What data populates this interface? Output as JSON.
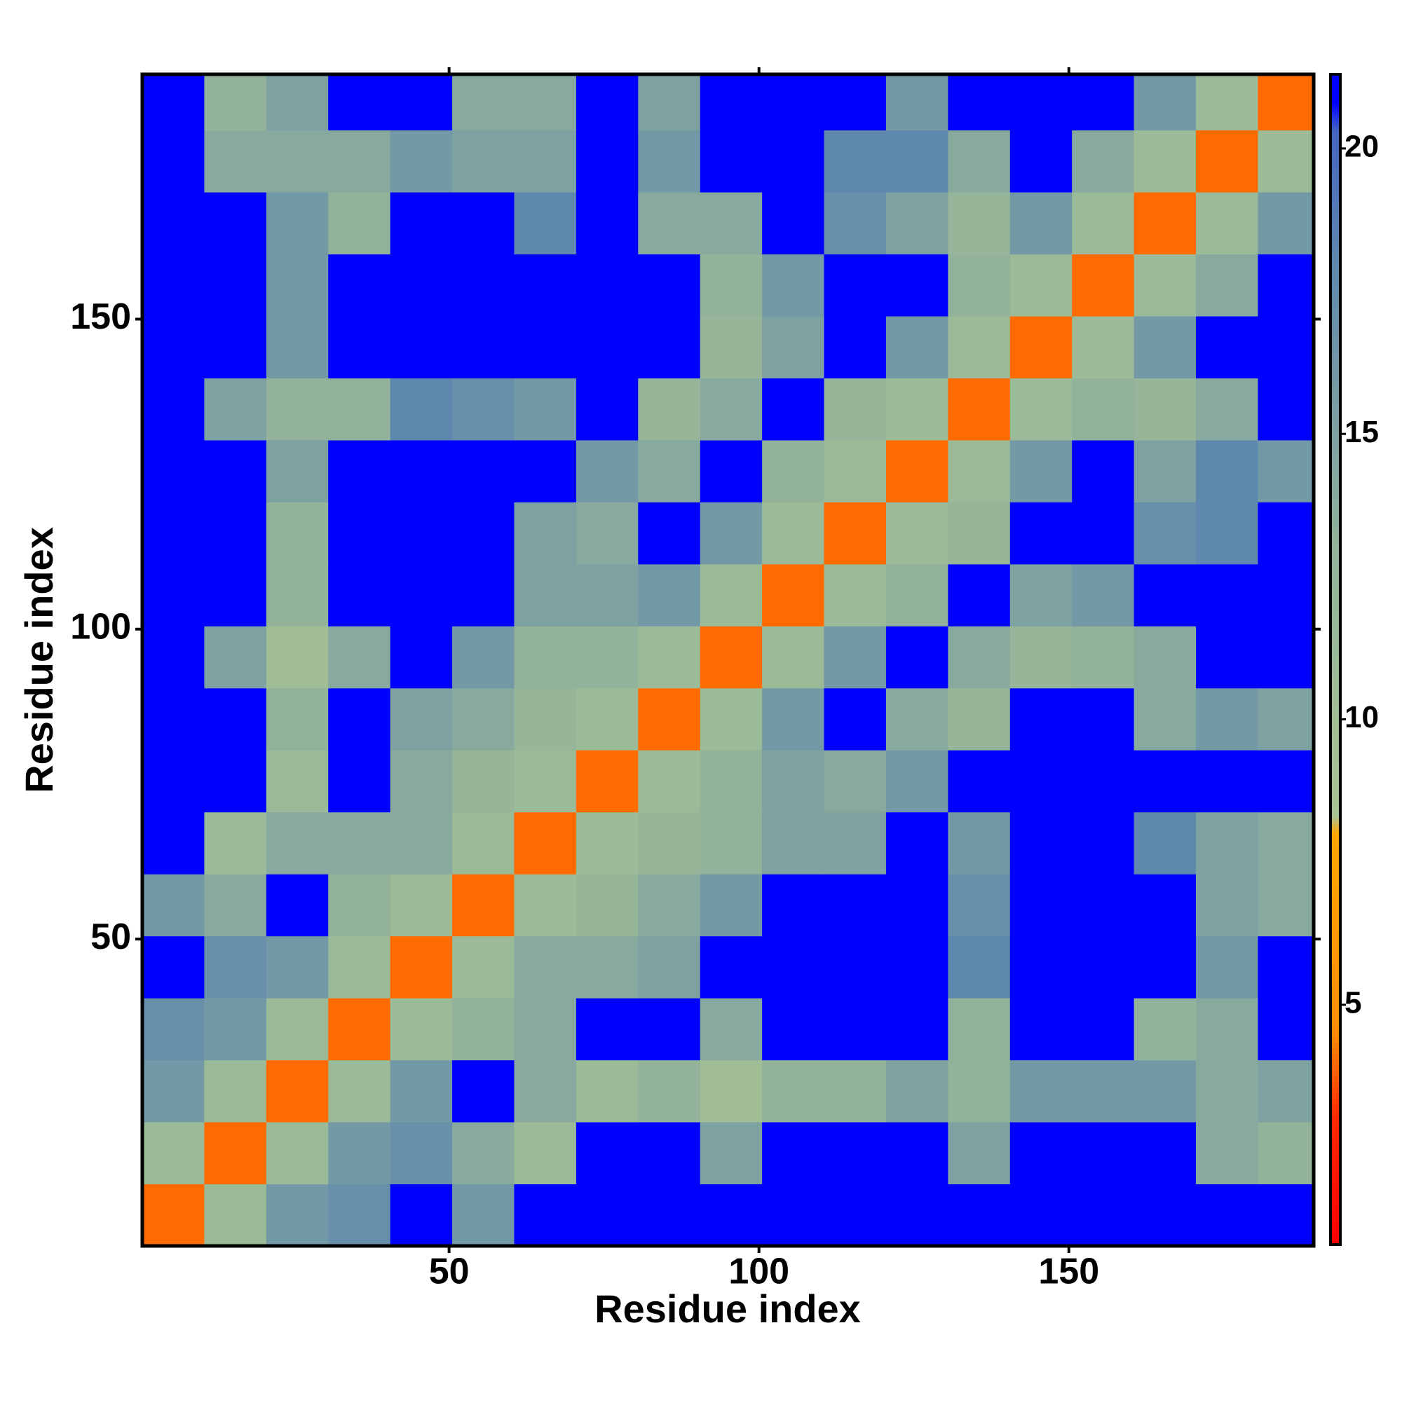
{
  "chart_data": {
    "type": "heatmap",
    "xlabel": "Residue index",
    "ylabel": "Residue index",
    "bins": [
      0.5,
      10.5,
      20.5,
      30.5,
      40.5,
      50.5,
      60.5,
      70.5,
      80.5,
      90.5,
      100.5,
      110.5,
      120.5,
      130.5,
      140.5,
      150.5,
      160.5,
      170.5,
      180.5,
      189.5
    ],
    "xlim": [
      0.5,
      189.5
    ],
    "ylim": [
      0.5,
      189.5
    ],
    "xticks": [
      50,
      100,
      150
    ],
    "yticks": [
      50,
      100,
      150
    ],
    "zlim": [
      0.8,
      21.3
    ],
    "zticks": [
      5,
      10,
      15,
      20
    ],
    "colorscale": [
      [
        0.8,
        "#ff0000"
      ],
      [
        3,
        "#ff2a00"
      ],
      [
        4.5,
        "#ff8c00"
      ],
      [
        8,
        "#ffa500"
      ],
      [
        8.3,
        "#a8c494"
      ],
      [
        13,
        "#92b29a"
      ],
      [
        18,
        "#5f88ae"
      ],
      [
        20.3,
        "#4466c4"
      ],
      [
        20.8,
        "#0000ff"
      ],
      [
        21.3,
        "#0000ff"
      ]
    ],
    "z": [
      [
        4,
        11,
        16,
        17,
        21,
        16,
        21,
        21,
        21,
        21,
        21,
        21,
        21,
        21,
        21,
        21,
        21,
        21,
        21
      ],
      [
        11,
        4,
        11,
        16,
        17,
        14,
        11,
        21,
        21,
        15,
        21,
        21,
        21,
        15,
        21,
        21,
        21,
        14,
        13
      ],
      [
        16,
        11,
        4,
        11,
        16,
        21,
        14,
        11,
        13,
        10,
        13,
        13,
        15,
        13,
        16,
        16,
        16,
        14,
        15
      ],
      [
        17,
        16,
        11,
        4,
        11,
        13,
        14,
        21,
        21,
        14,
        21,
        21,
        21,
        13,
        21,
        21,
        13,
        14,
        21
      ],
      [
        21,
        17,
        16,
        11,
        4,
        11,
        14,
        14,
        15,
        21,
        21,
        21,
        21,
        18,
        21,
        21,
        21,
        16,
        21
      ],
      [
        16,
        14,
        21,
        13,
        11,
        4,
        11,
        12,
        14,
        16,
        21,
        21,
        21,
        17,
        21,
        21,
        21,
        15,
        14
      ],
      [
        21,
        11,
        14,
        14,
        14,
        11,
        4,
        11,
        12,
        13,
        15,
        15,
        21,
        16,
        21,
        21,
        18,
        15,
        14
      ],
      [
        21,
        21,
        11,
        21,
        14,
        12,
        11,
        4,
        11,
        13,
        15,
        14,
        16,
        21,
        21,
        21,
        21,
        21,
        21
      ],
      [
        21,
        21,
        13,
        21,
        15,
        14,
        12,
        11,
        4,
        11,
        16,
        21,
        14,
        12,
        21,
        21,
        14,
        16,
        15
      ],
      [
        21,
        15,
        10,
        14,
        21,
        16,
        13,
        13,
        11,
        4,
        11,
        16,
        21,
        14,
        12,
        13,
        14,
        21,
        21
      ],
      [
        21,
        21,
        13,
        21,
        21,
        21,
        15,
        15,
        16,
        11,
        4,
        11,
        13,
        21,
        15,
        16,
        21,
        21,
        21
      ],
      [
        21,
        21,
        13,
        21,
        21,
        21,
        15,
        14,
        21,
        16,
        11,
        4,
        11,
        12,
        21,
        21,
        17,
        18,
        21
      ],
      [
        21,
        21,
        15,
        21,
        21,
        21,
        21,
        16,
        14,
        21,
        13,
        11,
        4,
        11,
        16,
        21,
        15,
        18,
        16
      ],
      [
        21,
        15,
        13,
        13,
        18,
        17,
        16,
        21,
        12,
        14,
        21,
        12,
        11,
        4,
        11,
        13,
        12,
        14,
        21
      ],
      [
        21,
        21,
        16,
        21,
        21,
        21,
        21,
        21,
        21,
        12,
        15,
        21,
        16,
        11,
        4,
        11,
        16,
        21,
        21
      ],
      [
        21,
        21,
        16,
        21,
        21,
        21,
        21,
        21,
        21,
        13,
        16,
        21,
        21,
        13,
        11,
        4,
        11,
        14,
        21
      ],
      [
        21,
        21,
        16,
        13,
        21,
        21,
        18,
        21,
        14,
        14,
        21,
        17,
        15,
        12,
        16,
        11,
        4,
        11,
        16
      ],
      [
        21,
        14,
        14,
        14,
        16,
        15,
        15,
        21,
        16,
        21,
        21,
        18,
        18,
        14,
        21,
        14,
        11,
        4,
        11
      ],
      [
        21,
        13,
        15,
        21,
        21,
        14,
        14,
        21,
        15,
        21,
        21,
        21,
        16,
        21,
        21,
        21,
        16,
        11,
        4
      ]
    ]
  }
}
